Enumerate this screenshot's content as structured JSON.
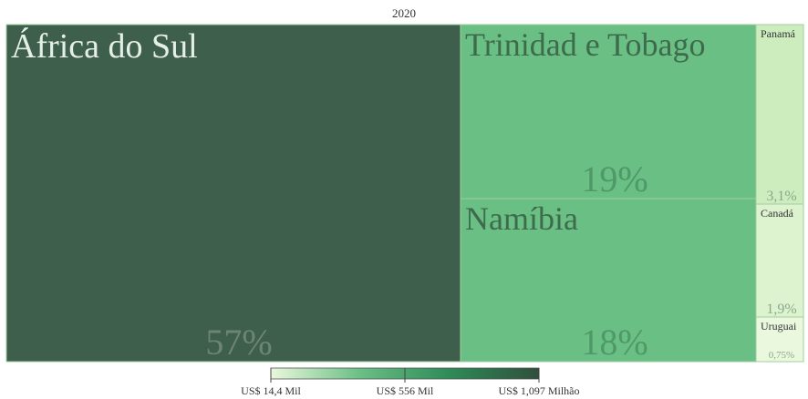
{
  "chart_data": {
    "type": "treemap",
    "title": "2020",
    "items": [
      {
        "name": "África do Sul",
        "share_label": "57%",
        "share": 57,
        "color": "#3d5f4b"
      },
      {
        "name": "Trinidad e Tobago",
        "share_label": "19%",
        "share": 19,
        "color": "#6abf85"
      },
      {
        "name": "Namíbia",
        "share_label": "18%",
        "share": 18,
        "color": "#6abf85"
      },
      {
        "name": "Panamá",
        "share_label": "3,1%",
        "share": 3.1,
        "color": "#cdedbf"
      },
      {
        "name": "Canadá",
        "share_label": "1,9%",
        "share": 1.9,
        "color": "#ddf3cf"
      },
      {
        "name": "Uruguai",
        "share_label": "0,75%",
        "share": 0.75,
        "color": "#eaf8dd"
      }
    ],
    "color_scale": {
      "stops": [
        "#eaf8dc",
        "#6abf85",
        "#2e8b57",
        "#2f4f3c"
      ],
      "tick_labels": [
        "US$ 14,4 Mil",
        "US$ 556 Mil",
        "US$ 1,097 Milhão"
      ]
    }
  }
}
